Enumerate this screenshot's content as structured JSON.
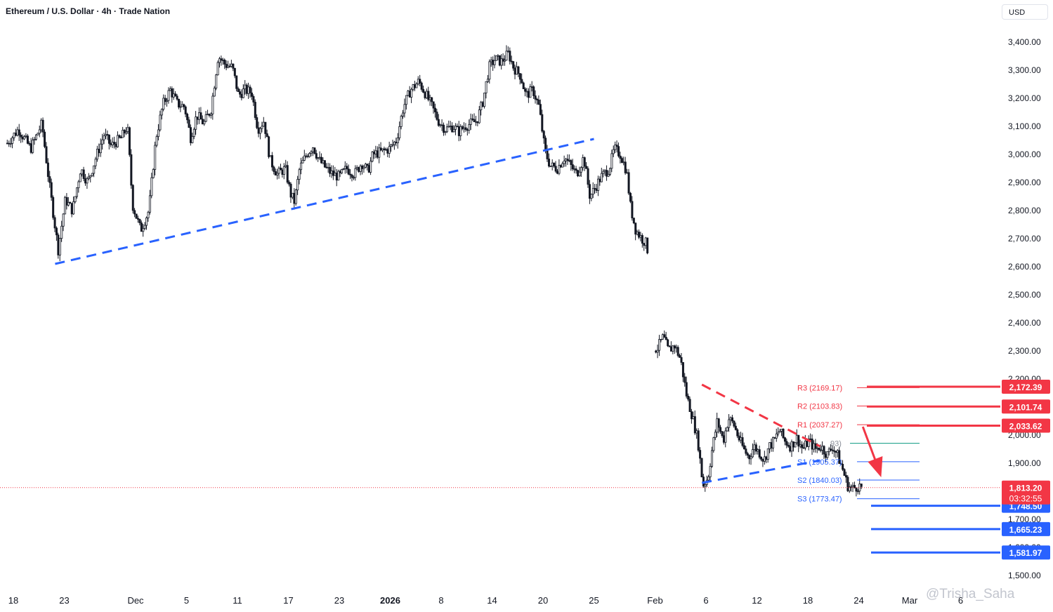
{
  "header": {
    "title": "Ethereum / U.S. Dollar · 4h · Trade Nation",
    "currency": "USD"
  },
  "watermark": "@Trisha_Saha",
  "chart_data": {
    "type": "candlestick",
    "symbol": "Ethereum / U.S. Dollar",
    "interval": "4h",
    "source": "Trade Nation",
    "ylim": [
      1450,
      3480
    ],
    "y_ticks": [
      1500,
      1600,
      1700,
      1800,
      1900,
      2000,
      2100,
      2200,
      2300,
      2400,
      2500,
      2600,
      2700,
      2800,
      2900,
      3000,
      3100,
      3200,
      3300,
      3400
    ],
    "y_tick_labels": [
      "1,500.00",
      "1,600.00",
      "1,700.00",
      "1,800.00",
      "1,900.00",
      "2,000.00",
      "2,100.00",
      "2,200.00",
      "2,300.00",
      "2,400.00",
      "2,500.00",
      "2,600.00",
      "2,700.00",
      "2,800.00",
      "2,900.00",
      "3,000.00",
      "3,100.00",
      "3,200.00",
      "3,300.00",
      "3,400.00"
    ],
    "x_ticks": [
      {
        "day": -4,
        "label": "18",
        "bold": false
      },
      {
        "day": 1,
        "label": "23",
        "bold": false
      },
      {
        "day": 8,
        "label": "Dec",
        "bold": false
      },
      {
        "day": 13,
        "label": "5",
        "bold": false
      },
      {
        "day": 18,
        "label": "11",
        "bold": false
      },
      {
        "day": 23,
        "label": "17",
        "bold": false
      },
      {
        "day": 28,
        "label": "23",
        "bold": false
      },
      {
        "day": 33,
        "label": "2026",
        "bold": true
      },
      {
        "day": 38,
        "label": "8",
        "bold": false
      },
      {
        "day": 43,
        "label": "14",
        "bold": false
      },
      {
        "day": 48,
        "label": "20",
        "bold": false
      },
      {
        "day": 53,
        "label": "25",
        "bold": false
      },
      {
        "day": 59,
        "label": "Feb",
        "bold": false
      },
      {
        "day": 64,
        "label": "6",
        "bold": false
      },
      {
        "day": 69,
        "label": "12",
        "bold": false
      },
      {
        "day": 74,
        "label": "18",
        "bold": false
      },
      {
        "day": 79,
        "label": "24",
        "bold": false
      },
      {
        "day": 84,
        "label": "Mar",
        "bold": false
      },
      {
        "day": 89,
        "label": "6",
        "bold": false
      }
    ],
    "close_path": [
      [
        -4.6,
        3040
      ],
      [
        -3.5,
        3090
      ],
      [
        -2.3,
        3020
      ],
      [
        -1.2,
        3110
      ],
      [
        -0.5,
        2900
      ],
      [
        0.4,
        2660
      ],
      [
        1.1,
        2840
      ],
      [
        1.8,
        2800
      ],
      [
        2.6,
        2950
      ],
      [
        3.3,
        2900
      ],
      [
        4.2,
        3000
      ],
      [
        4.9,
        3070
      ],
      [
        5.6,
        3030
      ],
      [
        6.6,
        3060
      ],
      [
        7.2,
        3100
      ],
      [
        7.7,
        2820
      ],
      [
        8.5,
        2730
      ],
      [
        9.3,
        2800
      ],
      [
        10.0,
        3060
      ],
      [
        10.7,
        3180
      ],
      [
        11.4,
        3230
      ],
      [
        12.1,
        3180
      ],
      [
        12.8,
        3170
      ],
      [
        13.4,
        3060
      ],
      [
        14.0,
        3140
      ],
      [
        14.7,
        3110
      ],
      [
        15.4,
        3160
      ],
      [
        16.1,
        3350
      ],
      [
        16.8,
        3320
      ],
      [
        17.5,
        3310
      ],
      [
        18.1,
        3210
      ],
      [
        18.7,
        3230
      ],
      [
        19.4,
        3220
      ],
      [
        20.0,
        3090
      ],
      [
        20.6,
        3120
      ],
      [
        21.2,
        2980
      ],
      [
        21.9,
        2930
      ],
      [
        22.7,
        2950
      ],
      [
        23.2,
        2860
      ],
      [
        23.6,
        2830
      ],
      [
        24.1,
        2950
      ],
      [
        24.8,
        3000
      ],
      [
        25.4,
        3030
      ],
      [
        26.0,
        2980
      ],
      [
        26.7,
        2950
      ],
      [
        27.3,
        2930
      ],
      [
        28.0,
        2920
      ],
      [
        28.7,
        2950
      ],
      [
        29.5,
        2930
      ],
      [
        30.2,
        2970
      ],
      [
        30.8,
        2940
      ],
      [
        31.3,
        3000
      ],
      [
        32.2,
        3010
      ],
      [
        32.9,
        3020
      ],
      [
        33.6,
        3050
      ],
      [
        34.3,
        3170
      ],
      [
        35.0,
        3230
      ],
      [
        35.8,
        3260
      ],
      [
        36.4,
        3220
      ],
      [
        37.1,
        3170
      ],
      [
        37.7,
        3120
      ],
      [
        38.4,
        3090
      ],
      [
        39.2,
        3100
      ],
      [
        39.7,
        3080
      ],
      [
        40.3,
        3100
      ],
      [
        40.9,
        3110
      ],
      [
        41.5,
        3120
      ],
      [
        42.1,
        3190
      ],
      [
        42.7,
        3310
      ],
      [
        43.3,
        3340
      ],
      [
        43.9,
        3330
      ],
      [
        44.6,
        3360
      ],
      [
        45.1,
        3310
      ],
      [
        45.8,
        3280
      ],
      [
        46.3,
        3210
      ],
      [
        47.0,
        3230
      ],
      [
        47.6,
        3170
      ],
      [
        48.2,
        3010
      ],
      [
        48.7,
        2960
      ],
      [
        49.4,
        2950
      ],
      [
        50.1,
        2990
      ],
      [
        50.7,
        2960
      ],
      [
        51.3,
        2930
      ],
      [
        52.0,
        2990
      ],
      [
        52.6,
        2850
      ],
      [
        53.1,
        2880
      ],
      [
        53.7,
        2920
      ],
      [
        54.5,
        2950
      ],
      [
        55.0,
        3020
      ],
      [
        55.6,
        3000
      ],
      [
        56.2,
        2940
      ],
      [
        56.6,
        2810
      ],
      [
        57.1,
        2730
      ],
      [
        57.7,
        2700
      ],
      [
        58.2,
        2680
      ],
      [
        59.1,
        2300
      ],
      [
        59.8,
        2350
      ],
      [
        60.3,
        2300
      ],
      [
        60.9,
        2320
      ],
      [
        61.5,
        2270
      ],
      [
        62.1,
        2140
      ],
      [
        62.7,
        2060
      ],
      [
        63.2,
        1980
      ],
      [
        63.7,
        1820
      ],
      [
        64.2,
        1850
      ],
      [
        64.6,
        1950
      ],
      [
        65.1,
        2050
      ],
      [
        65.7,
        1980
      ],
      [
        66.2,
        2060
      ],
      [
        66.7,
        2040
      ],
      [
        67.2,
        1990
      ],
      [
        67.7,
        1950
      ],
      [
        68.2,
        1920
      ],
      [
        68.7,
        1960
      ],
      [
        69.2,
        1940
      ],
      [
        69.7,
        1910
      ],
      [
        70.2,
        1960
      ],
      [
        70.7,
        1980
      ],
      [
        71.2,
        2020
      ],
      [
        71.7,
        1980
      ],
      [
        72.3,
        1960
      ],
      [
        72.9,
        1990
      ],
      [
        73.5,
        1950
      ],
      [
        74.1,
        1980
      ],
      [
        74.7,
        1950
      ],
      [
        75.3,
        1960
      ],
      [
        75.9,
        1930
      ],
      [
        76.4,
        1960
      ],
      [
        76.9,
        1930
      ],
      [
        77.4,
        1880
      ],
      [
        77.9,
        1820
      ],
      [
        78.4,
        1810
      ],
      [
        79.0,
        1820
      ],
      [
        79.3,
        1813.2
      ]
    ],
    "last_price": 1813.2,
    "last_price_label": "1,813.20",
    "countdown": "03:32:55",
    "pivot_labels": [
      {
        "name": "R3",
        "text": "R3 (2169.17)",
        "value": 2169.17,
        "color": "#f23645"
      },
      {
        "name": "R2",
        "text": "R2 (2103.83)",
        "value": 2103.83,
        "color": "#f23645"
      },
      {
        "name": "R1",
        "text": "R1 (2037.27)",
        "value": 2037.27,
        "color": "#f23645"
      },
      {
        "name": "S1",
        "text": "S1 (1905.37)",
        "value": 1905.37,
        "color": "#2962ff"
      },
      {
        "name": "S2",
        "text": "S2 (1840.03)",
        "value": 1840.03,
        "color": "#2962ff"
      },
      {
        "name": "S3",
        "text": "S3 (1773.47)",
        "value": 1773.47,
        "color": "#2962ff"
      }
    ],
    "pivot_partial_text": "93)",
    "pivot_partial_value": 1971,
    "price_badges": [
      {
        "value": 2172.39,
        "label": "2,172.39",
        "color": "#f23645"
      },
      {
        "value": 2101.74,
        "label": "2,101.74",
        "color": "#f23645"
      },
      {
        "value": 2033.62,
        "label": "2,033.62",
        "color": "#f23645"
      },
      {
        "value": 1748.5,
        "label": "1,748.50",
        "color": "#2962ff"
      },
      {
        "value": 1665.23,
        "label": "1,665.23",
        "color": "#2962ff"
      },
      {
        "value": 1581.97,
        "label": "1,581.97",
        "color": "#2962ff"
      }
    ],
    "trendlines": [
      {
        "from": [
          0.1,
          2610
        ],
        "to": [
          53.0,
          3055
        ],
        "color": "#2962ff",
        "style": "dashed"
      },
      {
        "from": [
          63.6,
          2180
        ],
        "to": [
          75.2,
          1960
        ],
        "color": "#f23645",
        "style": "dashed"
      },
      {
        "from": [
          63.6,
          1830
        ],
        "to": [
          75.2,
          1910
        ],
        "color": "#2962ff",
        "style": "dashed"
      }
    ],
    "forecast_arrow": {
      "from": [
        79.4,
        2030
      ],
      "to": [
        81.2,
        1850
      ],
      "color": "#f23645"
    },
    "colors": {
      "up": "#ffffff",
      "down": "#131722",
      "support": "#2962ff",
      "resistance": "#f23645",
      "last_price": "#f23645"
    }
  }
}
